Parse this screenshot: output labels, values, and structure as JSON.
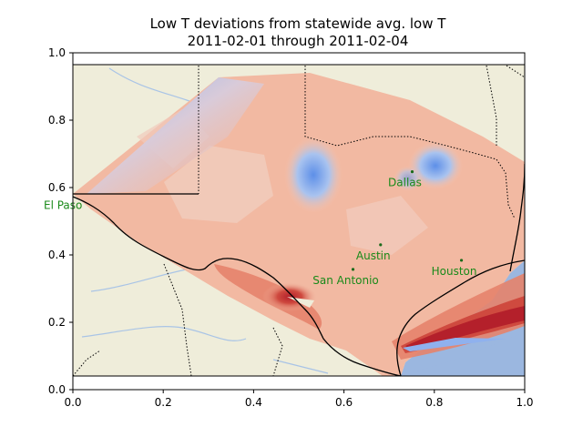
{
  "chart_data": {
    "type": "heatmap",
    "title": [
      "Low T deviations from statewide avg. low T",
      "2011-02-01 through 2011-02-04"
    ],
    "xlabel": "",
    "ylabel": "",
    "xlim": [
      0.0,
      1.0
    ],
    "ylim": [
      0.0,
      1.0
    ],
    "x_ticks": [
      "0.0",
      "0.2",
      "0.4",
      "0.6",
      "0.8",
      "1.0"
    ],
    "y_ticks": [
      "0.0",
      "0.2",
      "0.4",
      "0.6",
      "0.8",
      "1.0"
    ],
    "grid": false,
    "colors": {
      "land": "#efedda",
      "water": "#9bb7e0",
      "rivers": "#a9c4e6",
      "field_base": "#f2b9a2",
      "field_light": "#f1cbbc",
      "cold": "#8fb1ee",
      "warm_1": "#e5836b",
      "warm_2": "#cf4a3f",
      "warm_3": "#b4202b",
      "city_text": "#1a8a1a"
    },
    "cities": [
      {
        "name": "El Paso",
        "x": 0.005,
        "y": 0.58
      },
      {
        "name": "Dallas",
        "x": 0.751,
        "y": 0.647
      },
      {
        "name": "Austin",
        "x": 0.681,
        "y": 0.43
      },
      {
        "name": "San Antonio",
        "x": 0.62,
        "y": 0.357
      },
      {
        "name": "Houston",
        "x": 0.86,
        "y": 0.384
      }
    ]
  }
}
